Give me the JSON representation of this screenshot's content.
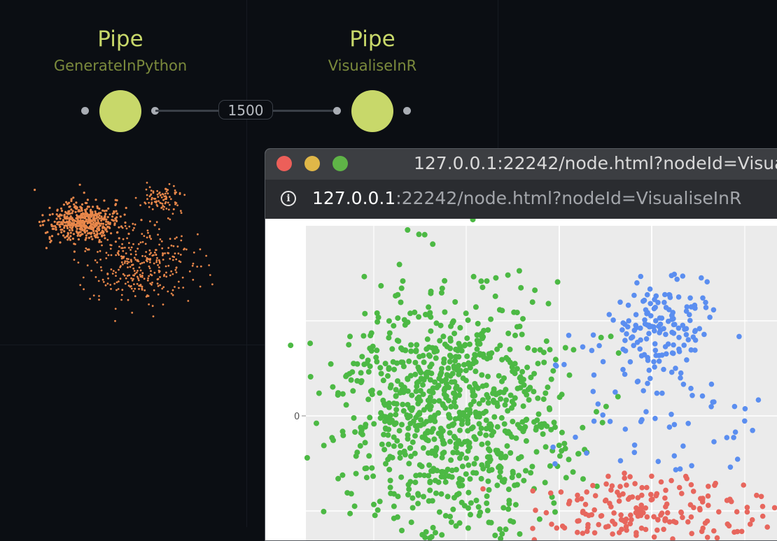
{
  "nodes": [
    {
      "title": "Pipe",
      "subtitle": "GenerateInPython"
    },
    {
      "title": "Pipe",
      "subtitle": "VisualiseInR"
    }
  ],
  "edge": {
    "label": "1500"
  },
  "browser": {
    "title": "127.0.0.1:22242/node.html?nodeId=Visualis",
    "url_host": "127.0.0.1",
    "url_rest": ":22242/node.html?nodeId=VisualiseInR",
    "plot": {
      "y_tick_label": "0",
      "background": "#ebebeb",
      "colors": {
        "green": "#4cb944",
        "blue": "#5b8ef0",
        "red": "#e7665d"
      }
    }
  },
  "colors": {
    "node": "#c8d86a",
    "mini_points": "#e8874a"
  }
}
